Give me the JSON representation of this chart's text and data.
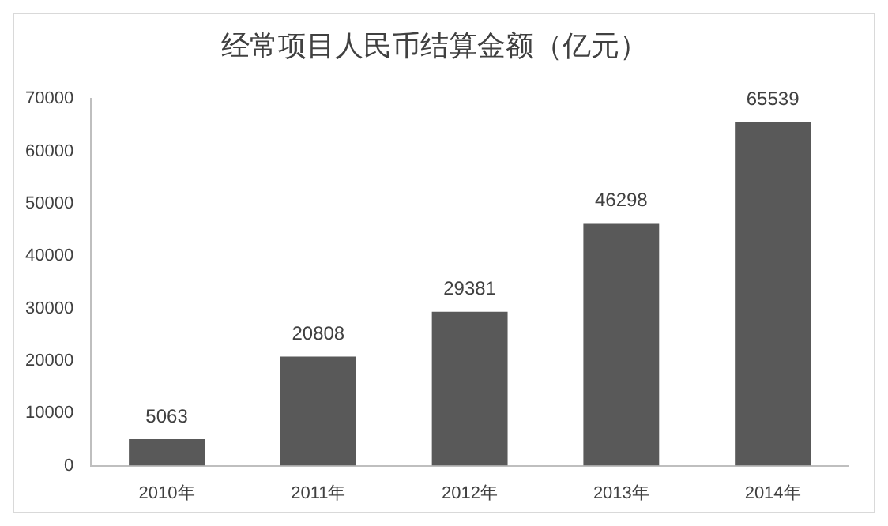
{
  "chart_data": {
    "type": "bar",
    "title": "经常项目人民币结算金额（亿元）",
    "categories": [
      "2010年",
      "2011年",
      "2012年",
      "2013年",
      "2014年"
    ],
    "values": [
      5063,
      20808,
      29381,
      46298,
      65539
    ],
    "color": "#595959",
    "ylim": [
      0,
      70000
    ],
    "yticks": [
      0,
      10000,
      20000,
      30000,
      40000,
      50000,
      60000,
      70000
    ],
    "grid": false,
    "legend": false,
    "data_labels": true
  }
}
